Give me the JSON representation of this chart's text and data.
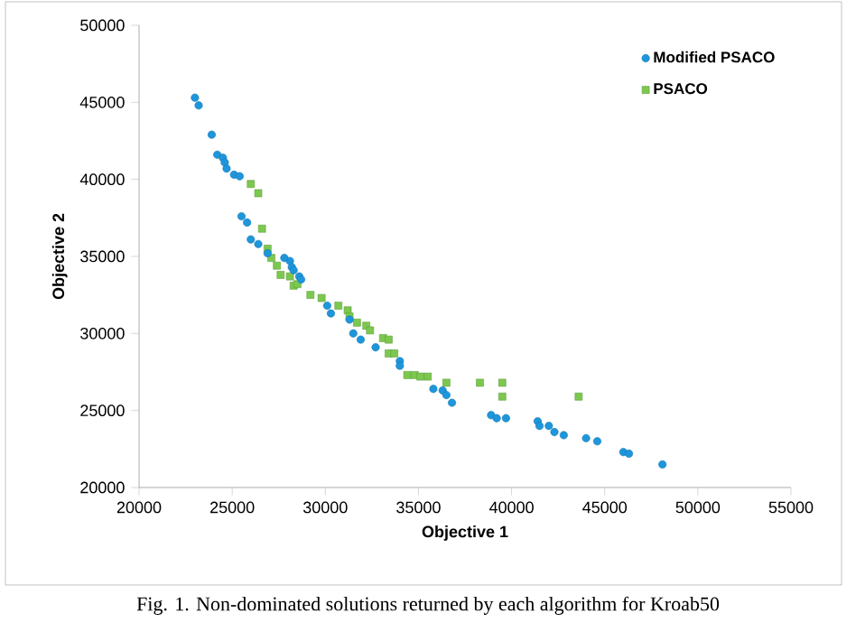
{
  "chart_data": {
    "type": "scatter",
    "xlabel": "Objective 1",
    "ylabel": "Objective 2",
    "xlim": [
      20000,
      55000
    ],
    "ylim": [
      20000,
      50000
    ],
    "xticks": [
      20000,
      25000,
      30000,
      35000,
      40000,
      45000,
      50000,
      55000
    ],
    "yticks": [
      20000,
      25000,
      30000,
      35000,
      40000,
      45000,
      50000
    ],
    "grid": false,
    "legend": "top right",
    "annotations": [
      "Fig. 1.  Non-dominated solutions returned by each algorithm for Kroab50"
    ],
    "series": [
      {
        "name": "Modified PSACO",
        "color": "#1e96dc",
        "marker": "circle",
        "x": [
          23000,
          23200,
          23900,
          24200,
          24500,
          24600,
          24700,
          25100,
          25400,
          25500,
          25800,
          26000,
          26400,
          26900,
          27800,
          28100,
          28200,
          28300,
          28600,
          28700,
          30100,
          30300,
          31300,
          31500,
          31900,
          32700,
          34000,
          34000,
          35800,
          36300,
          36500,
          36800,
          38900,
          39200,
          39700,
          41400,
          41500,
          42000,
          42300,
          42800,
          44000,
          44600,
          46000,
          46300,
          48100
        ],
        "values": [
          45300,
          44800,
          42900,
          41600,
          41400,
          41100,
          40700,
          40300,
          40200,
          37600,
          37200,
          36100,
          35800,
          35200,
          34900,
          34700,
          34300,
          34100,
          33700,
          33500,
          31800,
          31300,
          30900,
          30000,
          29600,
          29100,
          28200,
          27900,
          26400,
          26300,
          26000,
          25500,
          24700,
          24500,
          24500,
          24300,
          24000,
          24000,
          23600,
          23400,
          23200,
          23000,
          22300,
          22200,
          21500
        ]
      },
      {
        "name": "PSACO",
        "color": "#7cc84f",
        "marker": "square",
        "x": [
          26000,
          26400,
          26600,
          26900,
          27100,
          27400,
          27600,
          28100,
          28300,
          28500,
          29200,
          29800,
          30700,
          31200,
          31300,
          31700,
          32200,
          32400,
          33100,
          33400,
          33400,
          33700,
          34400,
          34800,
          35100,
          35500,
          36500,
          38300,
          39500,
          39500,
          43600
        ],
        "values": [
          39700,
          39100,
          36800,
          35500,
          34900,
          34400,
          33800,
          33700,
          33100,
          33200,
          32500,
          32300,
          31800,
          31500,
          31100,
          30700,
          30500,
          30200,
          29700,
          29600,
          28700,
          28700,
          27300,
          27300,
          27200,
          27200,
          26800,
          26800,
          26800,
          25900,
          25900
        ]
      }
    ]
  }
}
